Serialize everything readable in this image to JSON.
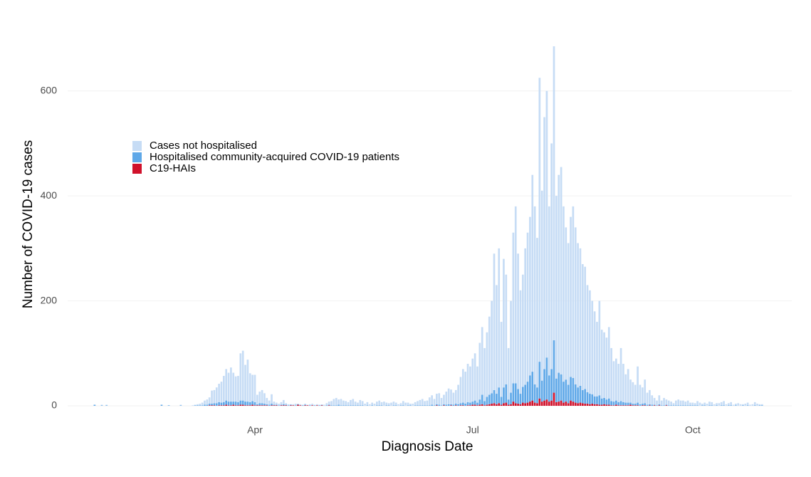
{
  "chart_data": {
    "type": "stacked-bar",
    "x_label": "Diagnosis Date",
    "y_label": "Number of COVID-19 cases",
    "categories": [
      null,
      null,
      null,
      null,
      null,
      null,
      null,
      null,
      null,
      null,
      null,
      null,
      null,
      null,
      null,
      null,
      null,
      null,
      null,
      null,
      null,
      null,
      null,
      null,
      null,
      null,
      null,
      null,
      null,
      null,
      null,
      null,
      null,
      null,
      null,
      null,
      null,
      null,
      null,
      null,
      null,
      null,
      null,
      null,
      null,
      null,
      null,
      null,
      null,
      null,
      null,
      null,
      null,
      null,
      null,
      null,
      null,
      null,
      null,
      null,
      null,
      null,
      null,
      null,
      null,
      null,
      null,
      "Apr",
      null,
      null,
      null,
      null,
      null,
      null,
      null,
      null,
      null,
      null,
      null,
      null,
      null,
      null,
      null,
      null,
      null,
      null,
      null,
      null,
      null,
      null,
      null,
      null,
      null,
      null,
      null,
      null,
      null,
      null,
      null,
      null,
      null,
      null,
      null,
      null,
      null,
      null,
      null,
      null,
      null,
      null,
      null,
      null,
      null,
      null,
      null,
      null,
      null,
      null,
      null,
      null,
      null,
      null,
      null,
      null,
      null,
      null,
      null,
      null,
      null,
      null,
      null,
      null,
      null,
      null,
      null,
      null,
      null,
      null,
      null,
      null,
      null,
      null,
      null,
      null,
      null,
      null,
      null,
      null,
      null,
      null,
      null,
      null,
      null,
      null,
      null,
      null,
      null,
      null,
      "Jul",
      null,
      null,
      null,
      null,
      null,
      null,
      null,
      null,
      null,
      null,
      null,
      null,
      null,
      null,
      null,
      null,
      null,
      null,
      null,
      null,
      null,
      null,
      null,
      null,
      null,
      null,
      null,
      null,
      null,
      null,
      null,
      null,
      null,
      null,
      null,
      null,
      null,
      null,
      null,
      null,
      null,
      null,
      null,
      null,
      null,
      null,
      null,
      null,
      null,
      null,
      null,
      null,
      null,
      null,
      null,
      null,
      null,
      null,
      null,
      null,
      null,
      null,
      null,
      null,
      null,
      null,
      null,
      null,
      null,
      null,
      null,
      null,
      null,
      null,
      null,
      null,
      null,
      null,
      null,
      null,
      null,
      null,
      null,
      null,
      null,
      null,
      null,
      null,
      null,
      null,
      null,
      "Oct",
      null,
      null,
      null,
      null,
      null,
      null,
      null,
      null,
      null,
      null,
      null,
      null,
      null,
      null,
      null,
      null,
      null,
      null,
      null,
      null,
      null,
      null,
      null,
      null,
      null,
      null,
      null,
      null,
      null
    ],
    "series": [
      {
        "name": "Cases not hospitalised",
        "color": "#c6dcf5",
        "values": [
          0,
          0,
          0,
          1,
          0,
          1,
          0,
          0,
          0,
          0,
          0,
          0,
          0,
          0,
          0,
          0,
          0,
          0,
          0,
          0,
          0,
          0,
          0,
          0,
          0,
          0,
          0,
          0,
          0,
          0,
          0,
          0,
          0,
          0,
          0,
          0,
          1,
          0,
          0,
          0,
          0,
          1,
          1,
          2,
          3,
          5,
          8,
          10,
          12,
          25,
          25,
          30,
          35,
          40,
          50,
          60,
          55,
          65,
          55,
          48,
          50,
          90,
          95,
          70,
          80,
          55,
          50,
          52,
          18,
          22,
          25,
          20,
          12,
          8,
          18,
          6,
          4,
          3,
          5,
          8,
          3,
          2,
          1,
          2,
          3,
          1,
          2,
          1,
          2,
          1,
          2,
          3,
          1,
          2,
          1,
          0,
          2,
          4,
          6,
          8,
          12,
          14,
          10,
          12,
          9,
          8,
          6,
          10,
          12,
          7,
          5,
          10,
          8,
          4,
          6,
          3,
          5,
          4,
          7,
          9,
          6,
          8,
          5,
          4,
          6,
          7,
          5,
          3,
          4,
          8,
          6,
          5,
          3,
          4,
          6,
          8,
          10,
          12,
          8,
          9,
          15,
          18,
          12,
          20,
          22,
          14,
          18,
          25,
          30,
          28,
          23,
          26,
          37,
          50,
          64,
          61,
          73,
          69,
          82,
          90,
          69,
          108,
          129,
          101,
          123,
          149,
          176,
          260,
          207,
          265,
          143,
          245,
          209,
          98,
          175,
          287,
          337,
          258,
          197,
          214,
          260,
          284,
          302,
          375,
          339,
          285,
          541,
          362,
          480,
          508,
          322,
          430,
          560,
          348,
          377,
          395,
          334,
          290,
          270,
          305,
          327,
          299,
          275,
          262,
          240,
          233,
          204,
          197,
          178,
          162,
          142,
          180,
          131,
          125,
          118,
          136,
          101,
          77,
          80,
          73,
          101,
          73,
          54,
          64,
          44,
          41,
          36,
          69,
          37,
          31,
          45,
          23,
          27,
          18,
          13,
          9,
          17,
          9,
          14,
          10,
          9,
          7,
          4,
          9,
          11,
          9,
          9,
          7,
          9,
          5,
          5,
          4,
          8,
          6,
          3,
          5,
          4,
          7,
          6,
          3,
          4,
          5,
          6,
          8,
          3,
          4,
          6,
          2,
          3,
          5,
          3,
          2,
          4,
          5,
          2,
          3,
          6,
          4,
          2,
          2
        ]
      },
      {
        "name": "Hospitalised community-acquired COVID-19 patients",
        "color": "#5fa8e8",
        "values": [
          2,
          0,
          0,
          1,
          0,
          1,
          0,
          0,
          0,
          0,
          0,
          0,
          0,
          0,
          0,
          0,
          0,
          0,
          0,
          0,
          0,
          0,
          0,
          0,
          0,
          0,
          0,
          0,
          2,
          0,
          0,
          1,
          0,
          0,
          0,
          0,
          1,
          0,
          0,
          0,
          0,
          0,
          1,
          1,
          1,
          1,
          2,
          2,
          3,
          3,
          4,
          5,
          6,
          5,
          6,
          8,
          7,
          7,
          6,
          7,
          6,
          8,
          8,
          7,
          7,
          6,
          7,
          6,
          2,
          4,
          4,
          3,
          2,
          2,
          3,
          1,
          1,
          1,
          1,
          2,
          1,
          1,
          1,
          0,
          1,
          1,
          0,
          1,
          1,
          0,
          1,
          0,
          1,
          0,
          1,
          1,
          0,
          1,
          1,
          1,
          1,
          1,
          2,
          1,
          1,
          1,
          1,
          1,
          1,
          1,
          1,
          1,
          1,
          0,
          1,
          0,
          1,
          0,
          1,
          1,
          1,
          0,
          1,
          1,
          0,
          1,
          1,
          0,
          1,
          1,
          0,
          1,
          1,
          0,
          1,
          1,
          1,
          1,
          1,
          1,
          1,
          2,
          1,
          2,
          2,
          1,
          2,
          2,
          3,
          2,
          2,
          3,
          3,
          4,
          5,
          4,
          6,
          5,
          6,
          8,
          5,
          10,
          18,
          8,
          15,
          18,
          20,
          25,
          20,
          30,
          15,
          30,
          35,
          10,
          22,
          35,
          38,
          28,
          20,
          30,
          35,
          40,
          50,
          55,
          35,
          30,
          70,
          40,
          60,
          80,
          50,
          60,
          100,
          45,
          55,
          50,
          40,
          42,
          35,
          45,
          45,
          35,
          30,
          32,
          25,
          28,
          22,
          20,
          18,
          15,
          15,
          18,
          12,
          12,
          10,
          12,
          8,
          7,
          8,
          6,
          8,
          6,
          5,
          5,
          4,
          3,
          3,
          5,
          3,
          3,
          4,
          2,
          2,
          2,
          1,
          1,
          2,
          1,
          1,
          1,
          1,
          1,
          1,
          1,
          1,
          1,
          1,
          1,
          1,
          1,
          1,
          1,
          1,
          0,
          1,
          1,
          0,
          1,
          1,
          0,
          1,
          0,
          1,
          1,
          0,
          1,
          1,
          0,
          1,
          0,
          0,
          1,
          0,
          1,
          0,
          0,
          1,
          0,
          1,
          1
        ]
      },
      {
        "name": "C19-HAIs",
        "color": "#d0112b",
        "values": [
          0,
          0,
          0,
          0,
          0,
          0,
          0,
          0,
          0,
          0,
          0,
          0,
          0,
          0,
          0,
          0,
          0,
          0,
          0,
          0,
          0,
          0,
          0,
          0,
          0,
          0,
          0,
          0,
          0,
          0,
          0,
          0,
          0,
          0,
          0,
          0,
          0,
          0,
          0,
          0,
          0,
          0,
          0,
          0,
          0,
          0,
          0,
          0,
          1,
          1,
          1,
          0,
          1,
          1,
          1,
          2,
          1,
          1,
          2,
          1,
          1,
          2,
          2,
          1,
          1,
          1,
          2,
          1,
          1,
          1,
          1,
          1,
          1,
          0,
          1,
          1,
          1,
          0,
          1,
          1,
          1,
          0,
          1,
          1,
          0,
          2,
          1,
          0,
          1,
          1,
          0,
          1,
          0,
          1,
          0,
          1,
          0,
          0,
          1,
          0,
          0,
          0,
          0,
          0,
          0,
          0,
          0,
          0,
          0,
          0,
          0,
          0,
          0,
          0,
          0,
          0,
          0,
          0,
          0,
          0,
          0,
          0,
          0,
          0,
          0,
          0,
          0,
          0,
          0,
          0,
          0,
          0,
          0,
          0,
          0,
          0,
          0,
          0,
          0,
          0,
          0,
          0,
          0,
          1,
          0,
          0,
          1,
          0,
          0,
          1,
          0,
          1,
          0,
          1,
          1,
          0,
          1,
          1,
          2,
          2,
          1,
          2,
          3,
          1,
          2,
          3,
          4,
          5,
          3,
          5,
          2,
          5,
          6,
          2,
          3,
          8,
          5,
          4,
          3,
          6,
          5,
          6,
          8,
          10,
          6,
          5,
          14,
          8,
          10,
          12,
          8,
          10,
          25,
          7,
          8,
          10,
          6,
          8,
          5,
          10,
          8,
          6,
          5,
          6,
          5,
          4,
          4,
          3,
          4,
          3,
          3,
          2,
          2,
          3,
          2,
          2,
          1,
          1,
          2,
          1,
          1,
          1,
          1,
          1,
          2,
          1,
          1,
          1,
          0,
          1,
          1,
          0,
          1,
          0,
          1,
          0,
          1,
          0,
          0,
          1,
          0,
          0,
          0,
          0,
          0,
          0,
          0,
          0,
          0,
          0,
          0,
          0,
          0,
          0,
          0,
          0,
          0,
          0,
          0,
          0,
          0,
          0,
          0,
          0,
          0,
          0,
          0,
          0,
          0,
          0,
          0,
          0,
          0,
          0,
          0,
          0,
          0,
          0,
          0,
          0
        ]
      }
    ],
    "ylim": [
      0,
      700
    ],
    "yticks": [
      0,
      200,
      400,
      600
    ],
    "grid": true
  }
}
